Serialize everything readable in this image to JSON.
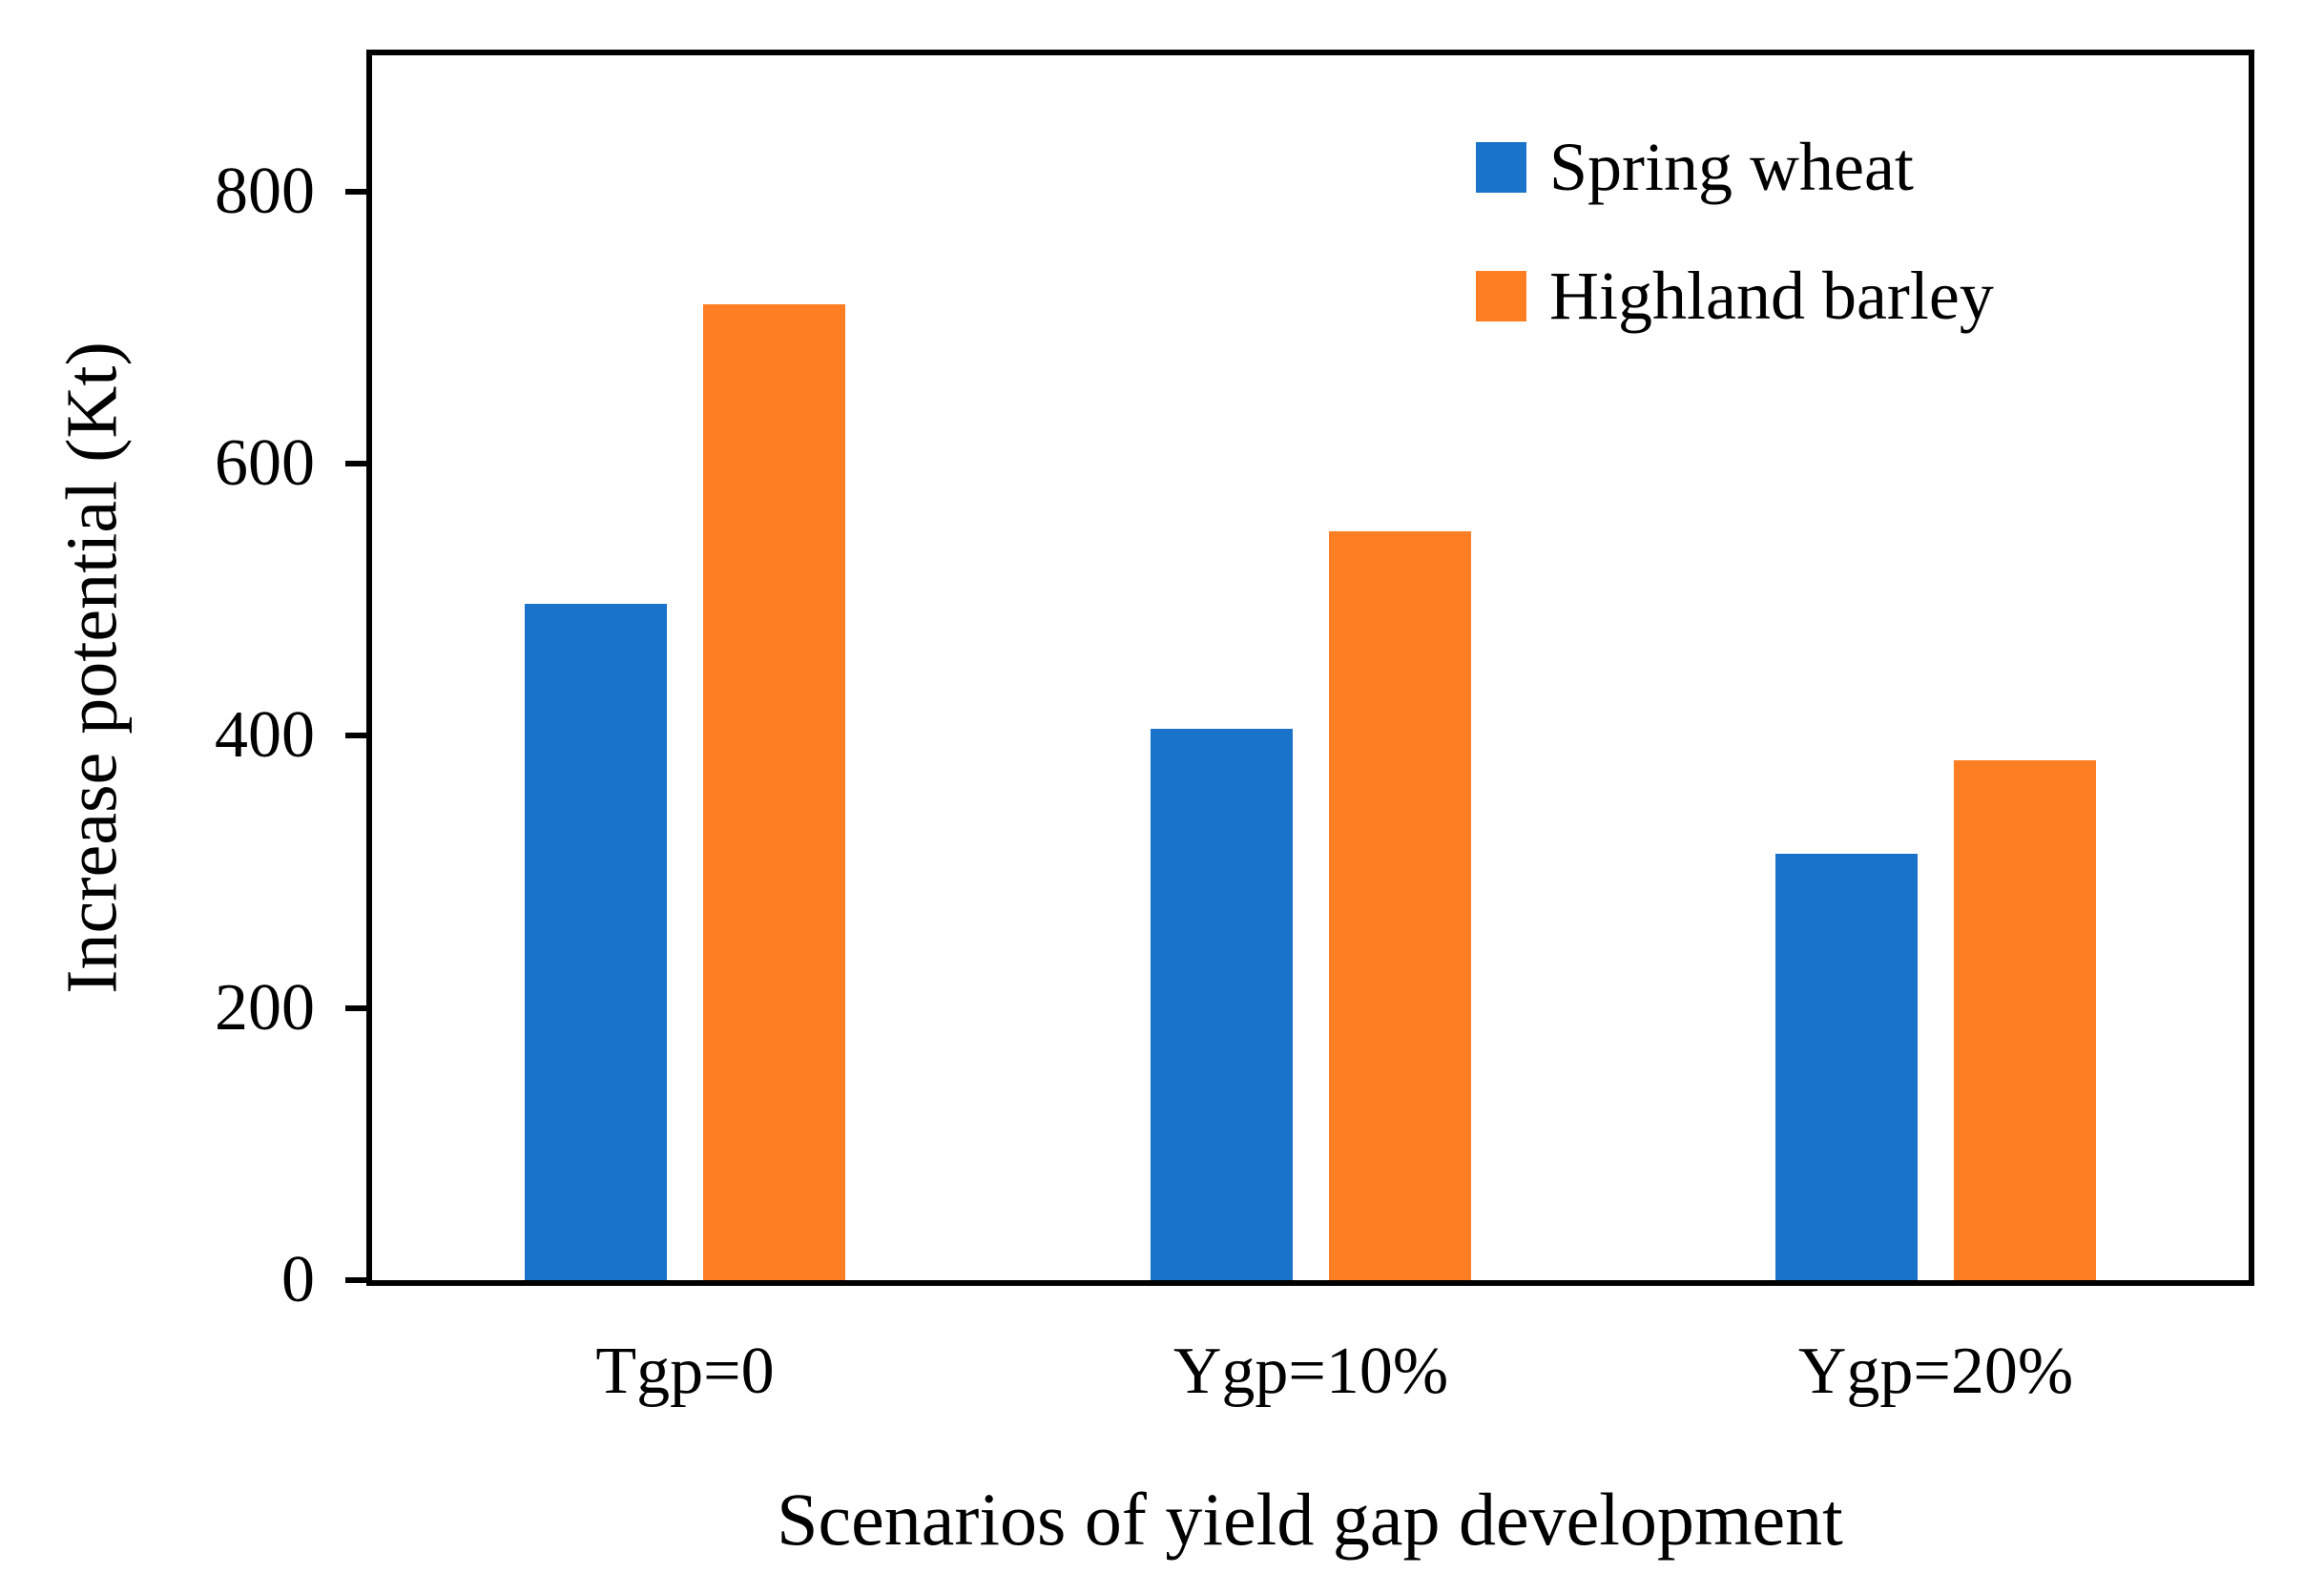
{
  "chart_data": {
    "type": "bar",
    "title": "",
    "categories": [
      "Tgp=0",
      "Ygp=10%",
      "Ygp=20%"
    ],
    "series": [
      {
        "name": "Spring wheat",
        "color": "#1973c8",
        "values": [
          497,
          405,
          313
        ]
      },
      {
        "name": "Highland barley",
        "color": "#fe7e24",
        "values": [
          717,
          550,
          382
        ]
      }
    ],
    "xlabel": "Scenarios of yield gap development",
    "ylabel": "Increase potential (Kt)",
    "ylim": [
      0,
      900
    ],
    "yticks": [
      0,
      200,
      400,
      600,
      800
    ],
    "grid": false,
    "legend_position": "top-right-inside",
    "axis_color": "#000000",
    "background_color": "#ffffff"
  }
}
